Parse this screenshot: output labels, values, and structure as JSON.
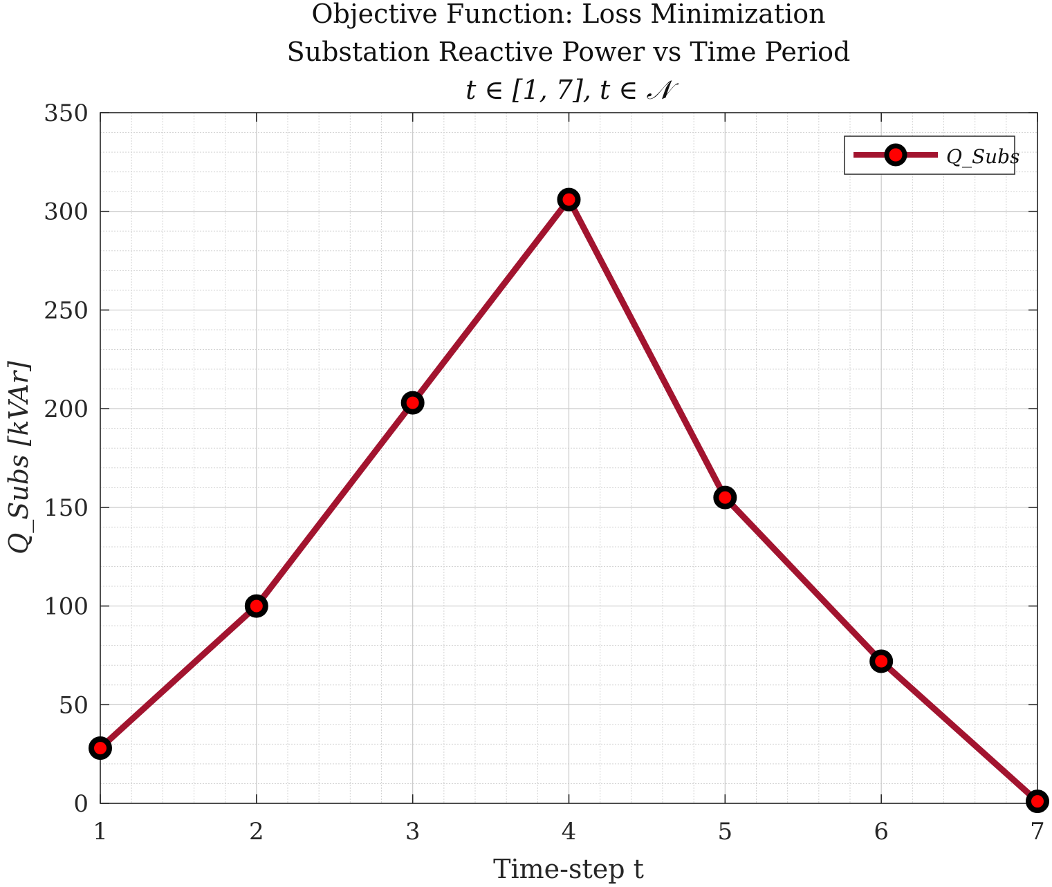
{
  "chart_data": {
    "type": "line",
    "title": [
      "Objective Function: Loss Minimization",
      "Substation Reactive Power vs Time Period",
      "t ∈ [1, 7], t ∈ 𝒩"
    ],
    "xlabel": "Time-step t",
    "ylabel": "Q_Subs [kVAr]",
    "x": [
      1,
      2,
      3,
      4,
      5,
      6,
      7
    ],
    "xlim": [
      1,
      7
    ],
    "ylim": [
      0,
      350
    ],
    "xticks": [
      "1",
      "2",
      "3",
      "4",
      "5",
      "6",
      "7"
    ],
    "yticks": [
      "0",
      "50",
      "100",
      "150",
      "200",
      "250",
      "300",
      "350"
    ],
    "series": [
      {
        "name": "Q_Subs",
        "values": [
          28,
          100,
          203,
          306,
          155,
          72,
          1
        ],
        "line_color": "#a2142f",
        "marker_edge_color": "#000000",
        "marker_face_color": "#ff0000"
      }
    ],
    "grid": true,
    "minor_grid": true,
    "legend_position": "top-right"
  }
}
